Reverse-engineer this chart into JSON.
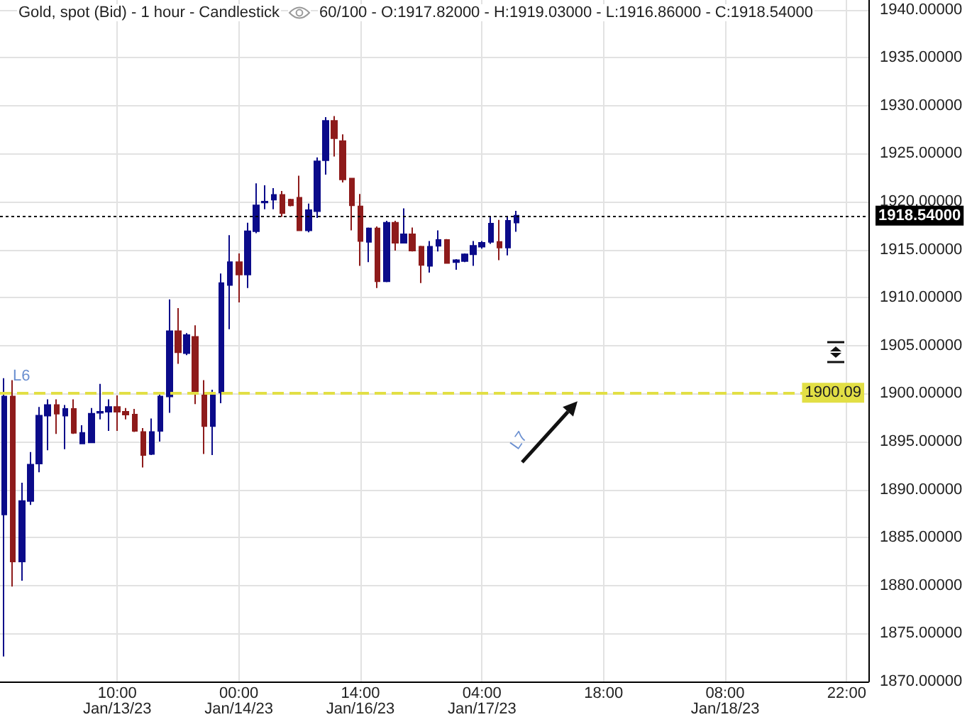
{
  "chart_data": {
    "type": "candlestick",
    "title": "Gold, spot (Bid) - 1 hour - Candlestick",
    "subtitle": "60/100 - O:1917.82000 - H:1919.03000 - L:1916.86000 - C:1918.54000",
    "categories": [
      null,
      null,
      null,
      null,
      null,
      null,
      null,
      null,
      null,
      null,
      null,
      null,
      null,
      "10:00\nJan/13/23",
      null,
      null,
      null,
      null,
      null,
      null,
      null,
      null,
      null,
      null,
      null,
      null,
      null,
      "00:00\nJan/14/23",
      null,
      null,
      null,
      null,
      null,
      null,
      null,
      null,
      null,
      null,
      null,
      null,
      null,
      "14:00\nJan/16/23",
      null,
      null,
      null,
      null,
      null,
      null,
      null,
      null,
      null,
      null,
      null,
      null,
      null,
      "04:00\nJan/17/23",
      null,
      null,
      null,
      null,
      null,
      null,
      null,
      null,
      null,
      null,
      null,
      null,
      null,
      "18:00",
      null,
      null,
      null,
      null,
      null,
      null,
      null,
      null,
      null,
      null,
      null,
      null,
      null,
      "08:00\nJan/18/23",
      null,
      null,
      null,
      null,
      null,
      null,
      null,
      null,
      null,
      null,
      null,
      null,
      null,
      "22:00",
      null,
      null
    ],
    "ohlc": [
      [
        1887.4,
        1901.6,
        1872.6,
        1899.7
      ],
      [
        1899.7,
        1901.4,
        1879.9,
        1882.5
      ],
      [
        1882.5,
        1890.7,
        1880.5,
        1888.8
      ],
      [
        1888.8,
        1893.9,
        1888.4,
        1892.6
      ],
      [
        1892.7,
        1898.6,
        1891.8,
        1897.7
      ],
      [
        1897.7,
        1899.4,
        1894.1,
        1898.8
      ],
      [
        1898.8,
        1899.4,
        1895.8,
        1897.9
      ],
      [
        1897.7,
        1898.8,
        1894.2,
        1898.4
      ],
      [
        1898.4,
        1899.4,
        1895.8,
        1895.9
      ],
      [
        1894.8,
        1896.7,
        1894.8,
        1895.9
      ],
      [
        1894.9,
        1898.5,
        1894.9,
        1897.9
      ],
      [
        1898.0,
        1901.0,
        1897.3,
        1898.1
      ],
      [
        1898.1,
        1899.4,
        1896.1,
        1898.6
      ],
      [
        1898.6,
        1899.8,
        1896.1,
        1898.1
      ],
      [
        1898.1,
        1898.5,
        1897.3,
        1897.8
      ],
      [
        1897.8,
        1898.4,
        1896.0,
        1896.1
      ],
      [
        1896.0,
        1896.4,
        1892.3,
        1893.6
      ],
      [
        1893.7,
        1897.4,
        1893.6,
        1896.0
      ],
      [
        1896.1,
        1900.0,
        1895.0,
        1899.7
      ],
      [
        1899.7,
        1909.8,
        1898.0,
        1906.5
      ],
      [
        1906.5,
        1908.9,
        1903.1,
        1904.3
      ],
      [
        1904.2,
        1906.3,
        1904.0,
        1906.1
      ],
      [
        1905.9,
        1907.1,
        1898.9,
        1900.0
      ],
      [
        1899.8,
        1901.4,
        1893.7,
        1896.6
      ],
      [
        1896.6,
        1900.4,
        1893.6,
        1899.8
      ],
      [
        1900.1,
        1912.5,
        1899.0,
        1911.5
      ],
      [
        1911.3,
        1916.5,
        1906.7,
        1913.7
      ],
      [
        1913.7,
        1914.6,
        1909.5,
        1912.4
      ],
      [
        1912.4,
        1917.8,
        1911.0,
        1916.9
      ],
      [
        1916.9,
        1921.9,
        1916.7,
        1919.6
      ],
      [
        1919.9,
        1921.7,
        1919.2,
        1920.0
      ],
      [
        1920.2,
        1921.4,
        1919.2,
        1920.7
      ],
      [
        1920.7,
        1921.1,
        1918.4,
        1918.8
      ],
      [
        1920.2,
        1920.3,
        1919.5,
        1919.6
      ],
      [
        1920.4,
        1922.7,
        1917.0,
        1917.0
      ],
      [
        1917.0,
        1919.8,
        1916.8,
        1919.1
      ],
      [
        1919.0,
        1924.6,
        1918.3,
        1924.2
      ],
      [
        1924.3,
        1928.8,
        1922.8,
        1928.4
      ],
      [
        1928.4,
        1928.9,
        1924.7,
        1926.6
      ],
      [
        1926.3,
        1927.0,
        1922.0,
        1922.3
      ],
      [
        1922.4,
        1922.4,
        1917.0,
        1919.6
      ],
      [
        1919.5,
        1920.8,
        1913.3,
        1915.9
      ],
      [
        1915.8,
        1917.3,
        1913.7,
        1917.2
      ],
      [
        1917.2,
        1917.4,
        1911.0,
        1911.7
      ],
      [
        1911.7,
        1918.0,
        1911.6,
        1917.8
      ],
      [
        1917.8,
        1918.0,
        1914.9,
        1915.7
      ],
      [
        1915.7,
        1919.3,
        1915.7,
        1916.6
      ],
      [
        1916.6,
        1917.3,
        1914.8,
        1914.9
      ],
      [
        1915.3,
        1915.4,
        1911.5,
        1913.4
      ],
      [
        1913.3,
        1915.9,
        1912.6,
        1915.3
      ],
      [
        1915.4,
        1917.0,
        1914.8,
        1916.0
      ],
      [
        1916.0,
        1916.1,
        1913.6,
        1913.6
      ],
      [
        1913.7,
        1914.0,
        1912.9,
        1913.9
      ],
      [
        1913.8,
        1914.6,
        1913.7,
        1914.5
      ],
      [
        1914.5,
        1915.9,
        1913.3,
        1915.4
      ],
      [
        1915.3,
        1915.9,
        1915.1,
        1915.7
      ],
      [
        1915.8,
        1918.5,
        1915.6,
        1917.7
      ],
      [
        1915.8,
        1918.1,
        1913.9,
        1915.2
      ],
      [
        1915.2,
        1918.5,
        1914.4,
        1918.0
      ],
      [
        1917.82,
        1919.03,
        1916.86,
        1918.54
      ],
      null,
      null,
      null,
      null,
      null,
      null,
      null,
      null,
      null,
      null,
      null,
      null,
      null,
      null,
      null,
      null,
      null,
      null,
      null,
      null,
      null,
      null,
      null,
      null,
      null,
      null,
      null,
      null,
      null,
      null,
      null,
      null,
      null,
      null,
      null,
      null,
      null,
      null,
      null,
      null
    ],
    "colors": [
      "#0b0b8a",
      "#8e1b1b",
      "#0b0b8a",
      "#0b0b8a",
      "#0b0b8a",
      "#0b0b8a",
      "#8e1b1b",
      "#0b0b8a",
      "#8e1b1b",
      "#0b0b8a",
      "#0b0b8a",
      "#0b0b8a",
      "#0b0b8a",
      "#8e1b1b",
      "#8e1b1b",
      "#8e1b1b",
      "#8e1b1b",
      "#0b0b8a",
      "#0b0b8a",
      "#0b0b8a",
      "#8e1b1b",
      "#0b0b8a",
      "#8e1b1b",
      "#8e1b1b",
      "#0b0b8a",
      "#0b0b8a",
      "#0b0b8a",
      "#8e1b1b",
      "#0b0b8a",
      "#0b0b8a",
      "#0b0b8a",
      "#0b0b8a",
      "#8e1b1b",
      "#8e1b1b",
      "#8e1b1b",
      "#0b0b8a",
      "#0b0b8a",
      "#0b0b8a",
      "#8e1b1b",
      "#8e1b1b",
      "#8e1b1b",
      "#8e1b1b",
      "#0b0b8a",
      "#8e1b1b",
      "#0b0b8a",
      "#8e1b1b",
      "#0b0b8a",
      "#8e1b1b",
      "#8e1b1b",
      "#0b0b8a",
      "#0b0b8a",
      "#8e1b1b",
      "#0b0b8a",
      "#0b0b8a",
      "#0b0b8a",
      "#0b0b8a",
      "#0b0b8a",
      "#8e1b1b",
      "#0b0b8a",
      "#0b0b8a",
      null,
      null,
      null,
      null,
      null,
      null,
      null,
      null,
      null,
      null,
      null,
      null,
      null,
      null,
      null,
      null,
      null,
      null,
      null,
      null,
      null,
      null,
      null,
      null,
      null,
      null,
      null,
      null,
      null,
      null,
      null,
      null,
      null,
      null,
      null,
      null,
      null,
      null,
      null,
      null
    ],
    "ylim": [
      1870,
      1941
    ],
    "yticks": [
      {
        "value": 1870,
        "label": "1870.00000"
      },
      {
        "value": 1875,
        "label": "1875.00000"
      },
      {
        "value": 1880,
        "label": "1880.00000"
      },
      {
        "value": 1885,
        "label": "1885.00000"
      },
      {
        "value": 1890,
        "label": "1890.00000"
      },
      {
        "value": 1895,
        "label": "1895.00000"
      },
      {
        "value": 1900,
        "label": "1900.00000"
      },
      {
        "value": 1905,
        "label": "1905.00000"
      },
      {
        "value": 1910,
        "label": "1910.00000"
      },
      {
        "value": 1915,
        "label": "1915.00000"
      },
      {
        "value": 1920,
        "label": "1920.00000"
      },
      {
        "value": 1925,
        "label": "1925.00000"
      },
      {
        "value": 1930,
        "label": "1930.00000"
      },
      {
        "value": 1935,
        "label": "1935.00000"
      },
      {
        "value": 1940,
        "label": "1940.00000"
      }
    ],
    "ref_lines": [
      {
        "axis": "y",
        "value": 1918.54,
        "label": "1918.54000",
        "color": "#000000",
        "line_style": "dotted"
      },
      {
        "axis": "y",
        "value": 1900.09,
        "label": "1900.09",
        "color": "#e2df45",
        "line_style": "dashed"
      }
    ],
    "annotations": [
      {
        "text": "L6",
        "y": 1900.09
      },
      "L7"
    ],
    "grid": true
  }
}
